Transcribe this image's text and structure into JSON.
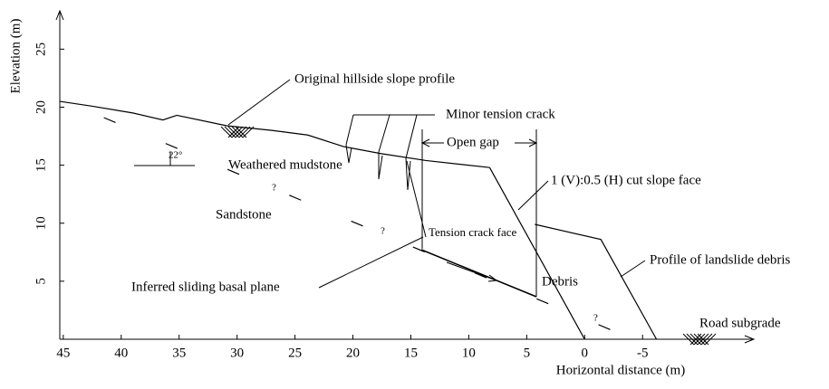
{
  "chart_data": {
    "type": "line",
    "xlabel": "Horizontal distance (m)",
    "ylabel": "Elevation (m)",
    "xlim": [
      45.3,
      -14.6
    ],
    "ylim": [
      0,
      28.3
    ],
    "xticks": [
      45,
      40,
      35,
      30,
      25,
      20,
      15,
      10,
      5,
      0,
      -5
    ],
    "yticks": [
      5,
      10,
      15,
      20,
      25
    ],
    "series": [
      {
        "name": "Original hillside slope profile",
        "color": "#000000",
        "style": "solid",
        "x": [
          45.3,
          42.6,
          39.0,
          36.4,
          35.2,
          30.9,
          27.0,
          23.9,
          20.8,
          17.6,
          13.7,
          8.2
        ],
        "values": [
          20.5,
          20.1,
          19.5,
          18.9,
          19.3,
          18.4,
          18.0,
          17.6,
          16.6,
          16.0,
          15.4,
          14.8
        ]
      },
      {
        "name": "1 (V):0.5 (H) cut slope face",
        "color": "#000000",
        "style": "solid",
        "x": [
          8.2,
          0
        ],
        "values": [
          14.8,
          0
        ]
      },
      {
        "name": "Profile of landslide debris",
        "color": "#000000",
        "style": "solid",
        "x": [
          4.3,
          -1.4,
          -6.2
        ],
        "values": [
          9.9,
          8.6,
          0
        ]
      },
      {
        "name": "Inferred sliding basal plane",
        "color": "#000000",
        "style": "dashed",
        "x": [
          41.5,
          -4.2
        ],
        "values": [
          19.1,
          0
        ]
      }
    ],
    "annotations": [
      "Minor tension crack",
      "Open gap",
      "Weathered mudstone",
      "Sandstone",
      "22°",
      "Tension crack face",
      "Debris",
      "Road subgrade",
      "?",
      "?",
      "?"
    ]
  }
}
